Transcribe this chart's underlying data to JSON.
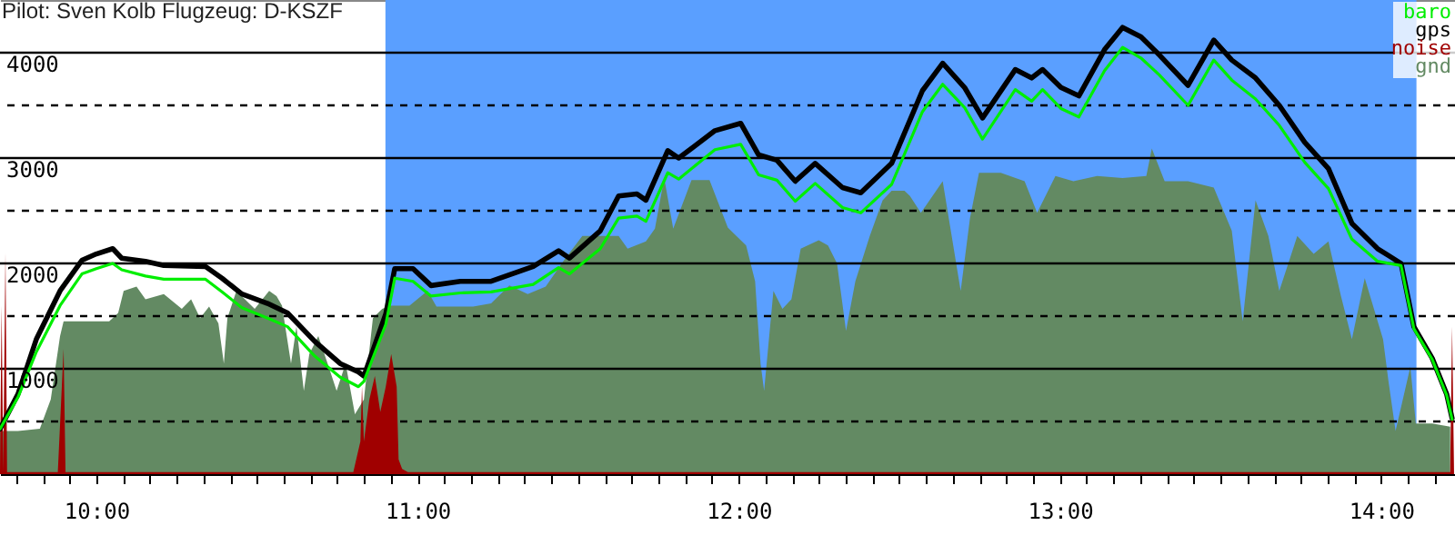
{
  "chart_data": {
    "type": "line",
    "title": "Pilot: Sven Kolb Flugzeug: D-KSZF",
    "xlim": [
      9.7,
      14.23
    ],
    "ylim": [
      0,
      4500
    ],
    "xticks": [
      {
        "value": 9.75,
        "label": null
      },
      {
        "value": 9.8333,
        "label": null
      },
      {
        "value": 9.9167,
        "label": null
      },
      {
        "value": 10,
        "label": "10:00"
      },
      {
        "value": 10.0833,
        "label": null
      },
      {
        "value": 10.1667,
        "label": null
      },
      {
        "value": 10.25,
        "label": null
      },
      {
        "value": 10.3333,
        "label": null
      },
      {
        "value": 10.4167,
        "label": null
      },
      {
        "value": 10.5,
        "label": null
      },
      {
        "value": 10.5833,
        "label": null
      },
      {
        "value": 10.6667,
        "label": null
      },
      {
        "value": 10.75,
        "label": null
      },
      {
        "value": 10.8333,
        "label": null
      },
      {
        "value": 10.9167,
        "label": null
      },
      {
        "value": 11,
        "label": "11:00"
      },
      {
        "value": 11.0833,
        "label": null
      },
      {
        "value": 11.1667,
        "label": null
      },
      {
        "value": 11.25,
        "label": null
      },
      {
        "value": 11.3333,
        "label": null
      },
      {
        "value": 11.4167,
        "label": null
      },
      {
        "value": 11.5,
        "label": null
      },
      {
        "value": 11.5833,
        "label": null
      },
      {
        "value": 11.6667,
        "label": null
      },
      {
        "value": 11.75,
        "label": null
      },
      {
        "value": 11.8333,
        "label": null
      },
      {
        "value": 11.9167,
        "label": null
      },
      {
        "value": 12,
        "label": "12:00"
      },
      {
        "value": 12.0833,
        "label": null
      },
      {
        "value": 12.1667,
        "label": null
      },
      {
        "value": 12.25,
        "label": null
      },
      {
        "value": 12.3333,
        "label": null
      },
      {
        "value": 12.4167,
        "label": null
      },
      {
        "value": 12.5,
        "label": null
      },
      {
        "value": 12.5833,
        "label": null
      },
      {
        "value": 12.6667,
        "label": null
      },
      {
        "value": 12.75,
        "label": null
      },
      {
        "value": 12.8333,
        "label": null
      },
      {
        "value": 12.9167,
        "label": null
      },
      {
        "value": 13,
        "label": "13:00"
      },
      {
        "value": 13.0833,
        "label": null
      },
      {
        "value": 13.1667,
        "label": null
      },
      {
        "value": 13.25,
        "label": null
      },
      {
        "value": 13.3333,
        "label": null
      },
      {
        "value": 13.4167,
        "label": null
      },
      {
        "value": 13.5,
        "label": null
      },
      {
        "value": 13.5833,
        "label": null
      },
      {
        "value": 13.6667,
        "label": null
      },
      {
        "value": 13.75,
        "label": null
      },
      {
        "value": 13.8333,
        "label": null
      },
      {
        "value": 13.9167,
        "label": null
      },
      {
        "value": 14,
        "label": "14:00"
      },
      {
        "value": 14.0833,
        "label": null
      },
      {
        "value": 14.1667,
        "label": null
      }
    ],
    "yticks": [
      {
        "value": 500,
        "label": null
      },
      1000,
      {
        "value": 1500,
        "label": null
      },
      2000,
      {
        "value": 2500,
        "label": null
      },
      3000,
      {
        "value": 3500,
        "label": null
      },
      4000
    ],
    "grid": "y",
    "legend": "top right",
    "bands": [
      {
        "axis": "x",
        "from": 10.9,
        "to": 14.11,
        "color": "#5a9fff"
      }
    ],
    "series": [
      {
        "name": "baro",
        "type": "line",
        "color": "#00ee00",
        "x": [
          9.7,
          9.756,
          9.813,
          9.887,
          9.955,
          10.0,
          10.051,
          10.079,
          10.153,
          10.21,
          10.34,
          10.391,
          10.453,
          10.533,
          10.595,
          10.68,
          10.759,
          10.816,
          10.833,
          10.901,
          10.929,
          10.986,
          11.042,
          11.133,
          11.229,
          11.36,
          11.439,
          11.473,
          11.569,
          11.626,
          11.683,
          11.711,
          11.779,
          11.813,
          11.926,
          12.006,
          12.062,
          12.119,
          12.176,
          12.238,
          12.323,
          12.38,
          12.476,
          12.572,
          12.635,
          12.703,
          12.759,
          12.861,
          12.912,
          12.946,
          13.003,
          13.059,
          13.139,
          13.195,
          13.252,
          13.309,
          13.399,
          13.479,
          13.535,
          13.609,
          13.683,
          13.762,
          13.836,
          13.909,
          13.989,
          14.062,
          14.102,
          14.159,
          14.204,
          14.221
        ],
        "values": [
          430,
          730,
          1160,
          1600,
          1900,
          1950,
          2000,
          1940,
          1880,
          1850,
          1850,
          1730,
          1580,
          1480,
          1400,
          1120,
          920,
          830,
          880,
          1420,
          1860,
          1830,
          1690,
          1720,
          1730,
          1800,
          1960,
          1900,
          2140,
          2430,
          2450,
          2400,
          2860,
          2800,
          3080,
          3130,
          2840,
          2790,
          2590,
          2760,
          2530,
          2480,
          2750,
          3440,
          3700,
          3480,
          3180,
          3650,
          3540,
          3650,
          3470,
          3390,
          3830,
          4050,
          3950,
          3790,
          3500,
          3930,
          3740,
          3560,
          3310,
          2960,
          2710,
          2230,
          2020,
          1980,
          1380,
          1090,
          750,
          520
        ]
      },
      {
        "name": "gps",
        "type": "line",
        "color": "#000000",
        "x": [
          9.7,
          9.756,
          9.813,
          9.887,
          9.955,
          10.0,
          10.051,
          10.079,
          10.153,
          10.21,
          10.34,
          10.391,
          10.453,
          10.533,
          10.595,
          10.68,
          10.759,
          10.816,
          10.833,
          10.901,
          10.929,
          10.986,
          11.042,
          11.133,
          11.229,
          11.36,
          11.439,
          11.473,
          11.569,
          11.626,
          11.683,
          11.711,
          11.779,
          11.813,
          11.926,
          12.006,
          12.062,
          12.119,
          12.176,
          12.238,
          12.323,
          12.38,
          12.476,
          12.572,
          12.635,
          12.703,
          12.759,
          12.861,
          12.912,
          12.946,
          13.003,
          13.059,
          13.139,
          13.195,
          13.252,
          13.309,
          13.399,
          13.479,
          13.535,
          13.609,
          13.683,
          13.762,
          13.836,
          13.909,
          13.989,
          14.062,
          14.102,
          14.159,
          14.204,
          14.221
        ],
        "values": [
          430,
          760,
          1280,
          1740,
          2030,
          2090,
          2140,
          2050,
          2020,
          1980,
          1970,
          1860,
          1710,
          1620,
          1530,
          1260,
          1050,
          970,
          930,
          1520,
          1950,
          1950,
          1790,
          1830,
          1830,
          1970,
          2120,
          2050,
          2310,
          2640,
          2660,
          2600,
          3070,
          3000,
          3260,
          3330,
          3030,
          2980,
          2780,
          2950,
          2720,
          2670,
          2950,
          3640,
          3900,
          3670,
          3380,
          3840,
          3760,
          3840,
          3670,
          3590,
          4030,
          4240,
          4150,
          3980,
          3690,
          4120,
          3930,
          3760,
          3500,
          3150,
          2900,
          2380,
          2140,
          2000,
          1400,
          1100,
          760,
          530
        ]
      },
      {
        "name": "noise",
        "type": "area",
        "color": "#a00000",
        "x": [
          9.7,
          9.705,
          9.71,
          9.717,
          9.722,
          9.88,
          9.898,
          9.904,
          10.8,
          10.822,
          10.827,
          10.833,
          10.85,
          10.867,
          10.884,
          10.901,
          10.918,
          10.935,
          10.941,
          10.952,
          10.97,
          14.2,
          14.215,
          14.221,
          14.227
        ],
        "values": [
          20,
          1600,
          20,
          2100,
          20,
          20,
          1190,
          20,
          20,
          310,
          830,
          310,
          710,
          930,
          590,
          830,
          1140,
          830,
          140,
          50,
          20,
          20,
          20,
          1400,
          20
        ]
      },
      {
        "name": "gnd",
        "type": "area",
        "color": "#638a63",
        "x": [
          9.7,
          9.756,
          9.824,
          9.858,
          9.887,
          9.898,
          10.04,
          10.068,
          10.085,
          10.125,
          10.153,
          10.21,
          10.266,
          10.295,
          10.323,
          10.351,
          10.38,
          10.397,
          10.408,
          10.436,
          10.493,
          10.538,
          10.561,
          10.578,
          10.606,
          10.623,
          10.646,
          10.663,
          10.691,
          10.72,
          10.748,
          10.776,
          10.805,
          10.833,
          10.861,
          10.89,
          10.918,
          10.975,
          11.031,
          11.059,
          11.173,
          11.229,
          11.286,
          11.343,
          11.399,
          11.456,
          11.513,
          11.626,
          11.654,
          11.711,
          11.739,
          11.768,
          11.796,
          11.853,
          11.909,
          11.966,
          12.023,
          12.051,
          12.068,
          12.079,
          12.108,
          12.136,
          12.164,
          12.193,
          12.249,
          12.278,
          12.306,
          12.334,
          12.363,
          12.408,
          12.448,
          12.476,
          12.516,
          12.533,
          12.567,
          12.635,
          12.691,
          12.72,
          12.748,
          12.816,
          12.89,
          12.929,
          12.986,
          13.042,
          13.116,
          13.195,
          13.269,
          13.286,
          13.326,
          13.399,
          13.479,
          13.535,
          13.569,
          13.609,
          13.649,
          13.683,
          13.739,
          13.79,
          13.836,
          13.875,
          13.909,
          13.949,
          14.006,
          14.023,
          14.045,
          14.091,
          14.108,
          14.159,
          14.215
        ],
        "values": [
          410,
          410,
          430,
          710,
          1310,
          1450,
          1450,
          1530,
          1740,
          1780,
          1660,
          1710,
          1570,
          1660,
          1480,
          1590,
          1430,
          1050,
          1480,
          1740,
          1570,
          1740,
          1690,
          1600,
          1050,
          1400,
          790,
          1140,
          1310,
          1050,
          790,
          1050,
          570,
          710,
          1480,
          1570,
          1600,
          1600,
          1740,
          1590,
          1590,
          1620,
          1790,
          1710,
          1780,
          2030,
          2260,
          2260,
          2140,
          2210,
          2330,
          2810,
          2330,
          2790,
          2790,
          2340,
          2170,
          1830,
          1050,
          790,
          1740,
          1570,
          1660,
          2140,
          2220,
          2170,
          2000,
          1360,
          1830,
          2260,
          2600,
          2690,
          2690,
          2640,
          2480,
          2780,
          1740,
          2430,
          2860,
          2860,
          2780,
          2480,
          2830,
          2780,
          2830,
          2810,
          2830,
          3090,
          2780,
          2780,
          2720,
          2310,
          1450,
          2600,
          2260,
          1740,
          2260,
          2090,
          2210,
          1690,
          1280,
          1860,
          1280,
          880,
          410,
          1020,
          480,
          480,
          450
        ]
      }
    ]
  }
}
